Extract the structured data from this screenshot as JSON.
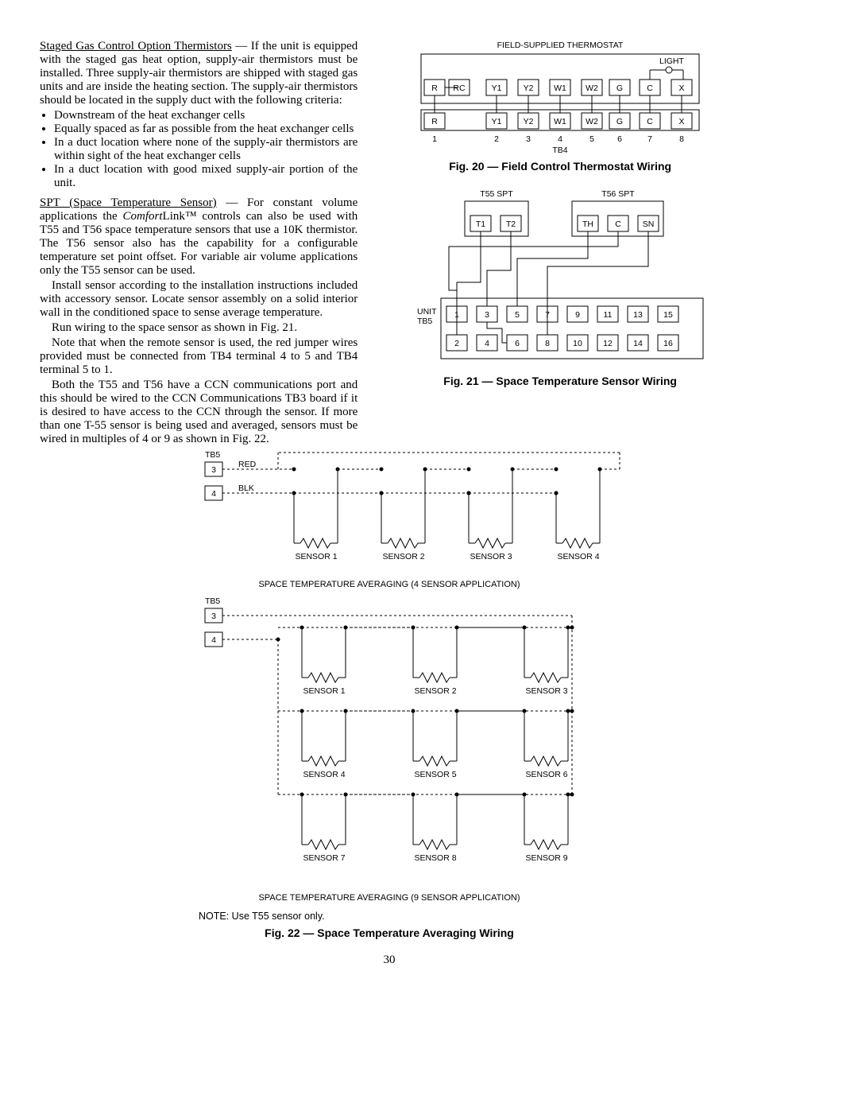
{
  "left": {
    "h1_lead": "Staged Gas Control Option Thermistors",
    "h1_rest": " — If the unit is equipped with the staged gas heat option, supply-air thermistors must be installed. Three supply-air thermistors are shipped with staged gas units and are inside the heating section. The supply-air thermistors should be located in the supply duct with the following criteria:",
    "bullets": [
      "Downstream of the heat exchanger cells",
      "Equally spaced as far as possible from the heat exchanger cells",
      "In a duct location where none of the supply-air thermistors are within sight of the heat exchanger cells",
      "In a duct location with good mixed supply-air portion of the unit."
    ],
    "h2_lead": "SPT (Space Temperature Sensor)",
    "h2_rest": " — For constant volume applications the ",
    "h2_brand": "Comfort",
    "h2_brand2": "Link™",
    "h2_rest2": " controls can also be used with T55 and T56 space temperature sensors that use a 10K thermistor. The T56 sensor also has the capability for a configurable temperature set point offset. For variable air volume applications only the T55 sensor can be used.",
    "p_install": "Install sensor according to the installation instructions included with accessory sensor. Locate sensor assembly on a solid interior wall in the conditioned space to sense average temperature.",
    "p_run": "Run wiring to the space sensor as shown in Fig. 21.",
    "p_note": "Note that when the remote sensor is used, the red jumper wires provided must be connected from TB4 terminal 4 to 5 and TB4 terminal 5 to 1.",
    "p_both": "Both the T55 and T56 have a CCN communications port and this should be wired to the CCN Communications TB3 board if it is desired to have access to the CCN through the sensor. If more than one T-55 sensor is being used and averaged, sensors must be wired in multiples of 4 or 9 as shown in Fig. 22."
  },
  "fig20": {
    "title": "FIELD-SUPPLIED THERMOSTAT",
    "caption": "Fig. 20 — Field Control Thermostat Wiring",
    "light": "LIGHT",
    "tb4": "TB4",
    "row1": [
      "R",
      "RC",
      "Y1",
      "Y2",
      "W1",
      "W2",
      "G",
      "C",
      "X"
    ],
    "row2": [
      "R",
      "",
      "Y1",
      "Y2",
      "W1",
      "W2",
      "G",
      "C",
      "X"
    ],
    "nums": [
      "1",
      "",
      "2",
      "3",
      "4",
      "5",
      "6",
      "7",
      "8"
    ]
  },
  "fig21": {
    "caption": "Fig. 21 — Space Temperature Sensor Wiring",
    "t55": "T55 SPT",
    "t56": "T56 SPT",
    "box1": [
      "T1",
      "T2"
    ],
    "box2": [
      "TH",
      "C",
      "SN"
    ],
    "unit": "UNIT",
    "tb5": "TB5",
    "tops": [
      "1",
      "3",
      "5",
      "7",
      "9",
      "11",
      "13",
      "15"
    ],
    "bots": [
      "2",
      "4",
      "6",
      "8",
      "10",
      "12",
      "14",
      "16"
    ]
  },
  "fig22": {
    "tb5": "TB5",
    "red": "RED",
    "blk": "BLK",
    "n3": "3",
    "n4": "4",
    "s": [
      "SENSOR 1",
      "SENSOR 2",
      "SENSOR 3",
      "SENSOR 4",
      "SENSOR 5",
      "SENSOR 6",
      "SENSOR 7",
      "SENSOR 8",
      "SENSOR 9"
    ],
    "cap4": "SPACE TEMPERATURE AVERAGING (4 SENSOR APPLICATION)",
    "cap9": "SPACE TEMPERATURE AVERAGING (9 SENSOR APPLICATION)",
    "note": "NOTE: Use T55 sensor only.",
    "caption": "Fig. 22 — Space Temperature Averaging Wiring"
  },
  "pagenum": "30"
}
